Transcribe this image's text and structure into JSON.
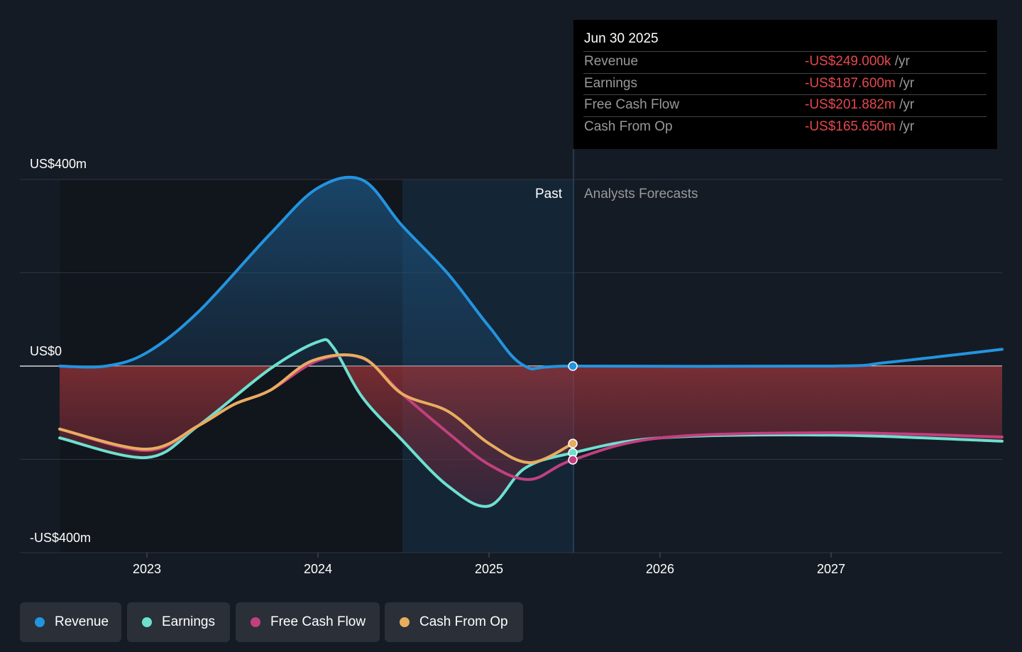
{
  "tooltip": {
    "date": "Jun 30 2025",
    "unit": "/yr",
    "rows": [
      {
        "label": "Revenue",
        "value": "-US$249.000k"
      },
      {
        "label": "Earnings",
        "value": "-US$187.600m"
      },
      {
        "label": "Free Cash Flow",
        "value": "-US$201.882m"
      },
      {
        "label": "Cash From Op",
        "value": "-US$165.650m"
      }
    ]
  },
  "regions": {
    "past": "Past",
    "forecast": "Analysts Forecasts"
  },
  "chart_data": {
    "type": "line",
    "ylabel": "",
    "xlabel": "",
    "ylim": [
      -400,
      400
    ],
    "xlim": [
      2022.26,
      2028.0
    ],
    "y_ticks": [
      "US$400m",
      "US$0",
      "-US$400m"
    ],
    "x_ticks": [
      {
        "x": 2023,
        "label": "2023"
      },
      {
        "x": 2024,
        "label": "2024"
      },
      {
        "x": 2025,
        "label": "2025"
      },
      {
        "x": 2026,
        "label": "2026"
      },
      {
        "x": 2027,
        "label": "2027"
      }
    ],
    "past_end": 2025.49,
    "series": [
      {
        "name": "Revenue",
        "color": "#2394df",
        "x": [
          2022.49,
          2022.76,
          2023,
          2023.3,
          2023.72,
          2024,
          2024.26,
          2024.49,
          2024.76,
          2025,
          2025.21,
          2025.49,
          2027,
          2027.33,
          2028
        ],
        "values": [
          0,
          0,
          29,
          116,
          283,
          382,
          399,
          302,
          198,
          85,
          0,
          0,
          0,
          8,
          36
        ]
      },
      {
        "name": "Earnings",
        "color": "#6de0d0",
        "x": [
          2022.49,
          2023,
          2023.3,
          2023.72,
          2024,
          2024.09,
          2024.26,
          2024.49,
          2024.76,
          2025,
          2025.21,
          2025.49,
          2026,
          2027,
          2028
        ],
        "values": [
          -154,
          -196,
          -128,
          -6,
          52,
          40,
          -67,
          -158,
          -257,
          -300,
          -219,
          -186,
          -154,
          -148,
          -161
        ]
      },
      {
        "name": "Free Cash Flow",
        "color": "#c2407f",
        "x": [
          2022.49,
          2023,
          2023.3,
          2023.51,
          2023.72,
          2024,
          2024.26,
          2024.49,
          2024.76,
          2025,
          2025.24,
          2025.49,
          2026,
          2027,
          2028
        ],
        "values": [
          -135,
          -181,
          -128,
          -82,
          -52,
          12,
          17,
          -59,
          -143,
          -211,
          -243,
          -201,
          -154,
          -143,
          -152
        ]
      },
      {
        "name": "Cash From Op",
        "color": "#e8ad5f",
        "x": [
          2022.49,
          2023,
          2023.3,
          2023.51,
          2023.72,
          2023.97,
          2024.26,
          2024.49,
          2024.76,
          2025,
          2025.24,
          2025.49
        ],
        "values": [
          -135,
          -178,
          -128,
          -82,
          -52,
          12,
          18,
          -59,
          -97,
          -166,
          -207,
          -166
        ]
      }
    ]
  },
  "legend": [
    "Revenue",
    "Earnings",
    "Free Cash Flow",
    "Cash From Op"
  ]
}
